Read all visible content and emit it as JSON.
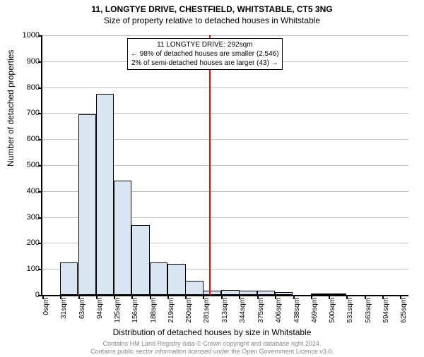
{
  "titles": {
    "line1": "11, LONGTYE DRIVE, CHESTFIELD, WHITSTABLE, CT5 3NG",
    "line2": "Size of property relative to detached houses in Whitstable"
  },
  "ylabel": "Number of detached properties",
  "xlabel": "Distribution of detached houses by size in Whitstable",
  "annotation": {
    "line1": "11 LONGTYE DRIVE: 292sqm",
    "line2": "← 98% of detached houses are smaller (2,546)",
    "line3": "2% of semi-detached houses are larger (43) →"
  },
  "marker": {
    "x_value": 292,
    "color": "#ff0000"
  },
  "footer": {
    "line1": "Contains HM Land Registry data © Crown copyright and database right 2024.",
    "line2": "Contains public sector information licensed under the Open Government Licence v3.0."
  },
  "chart": {
    "type": "histogram",
    "xlim": [
      0,
      640
    ],
    "ylim": [
      0,
      1000
    ],
    "ytick_step": 100,
    "xtick_step": 31.25,
    "x_unit": "sqm",
    "bar_fill": "#d9e6f2",
    "bar_stroke": "#000000",
    "grid_color": "#bfbfbf",
    "background_color": "#ffffff",
    "bin_width": 31.25,
    "bins": [
      {
        "x": 0,
        "count": 0
      },
      {
        "x": 31,
        "count": 125
      },
      {
        "x": 63,
        "count": 695
      },
      {
        "x": 94,
        "count": 775
      },
      {
        "x": 125,
        "count": 440
      },
      {
        "x": 156,
        "count": 270
      },
      {
        "x": 188,
        "count": 125
      },
      {
        "x": 219,
        "count": 120
      },
      {
        "x": 250,
        "count": 55
      },
      {
        "x": 281,
        "count": 15
      },
      {
        "x": 313,
        "count": 20
      },
      {
        "x": 344,
        "count": 15
      },
      {
        "x": 375,
        "count": 15
      },
      {
        "x": 406,
        "count": 10
      },
      {
        "x": 438,
        "count": 0
      },
      {
        "x": 469,
        "count": 5
      },
      {
        "x": 500,
        "count": 5
      },
      {
        "x": 531,
        "count": 0
      },
      {
        "x": 563,
        "count": 0
      },
      {
        "x": 594,
        "count": 0
      }
    ]
  }
}
